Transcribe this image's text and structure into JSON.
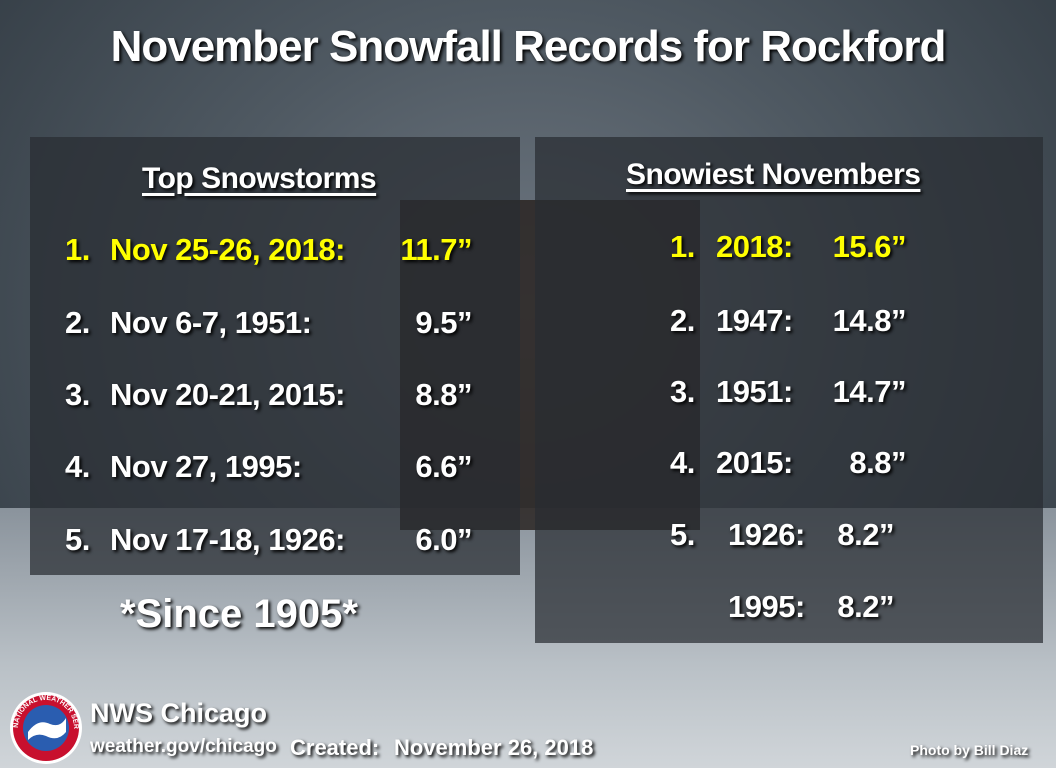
{
  "title": "November Snowfall Records for Rockford",
  "left_panel": {
    "heading": "Top Snowstorms",
    "rows": [
      {
        "rank": "1.",
        "label": "Nov 25-26, 2018:",
        "amount": "11.7”"
      },
      {
        "rank": "2.",
        "label": "Nov 6-7, 1951:",
        "amount": "9.5”"
      },
      {
        "rank": "3.",
        "label": "Nov 20-21, 2015:",
        "amount": "8.8”"
      },
      {
        "rank": "4.",
        "label": "Nov 27, 1995:",
        "amount": "6.6”"
      },
      {
        "rank": "5.",
        "label": "Nov 17-18, 1926:",
        "amount": "6.0”"
      }
    ]
  },
  "note": "*Since 1905*",
  "right_panel": {
    "heading": "Snowiest Novembers",
    "rows": [
      {
        "rank": "1.",
        "label": "2018:",
        "amount": "15.6”"
      },
      {
        "rank": "2.",
        "label": "1947:",
        "amount": "14.8”"
      },
      {
        "rank": "3.",
        "label": "1951:",
        "amount": "14.7”"
      },
      {
        "rank": "4.",
        "label": "2015:",
        "amount": "8.8”"
      },
      {
        "rank": "5.",
        "label": "1926:",
        "amount": "8.2”"
      },
      {
        "label": "1995:",
        "amount": "8.2”"
      }
    ]
  },
  "footer": {
    "logo_text": "NATIONAL WEATHER SERVICE",
    "org": "NWS Chicago",
    "url": "weather.gov/chicago",
    "created_label": "Created:",
    "created_date": "November 26, 2018",
    "credit": "Photo by Bill Diaz"
  }
}
